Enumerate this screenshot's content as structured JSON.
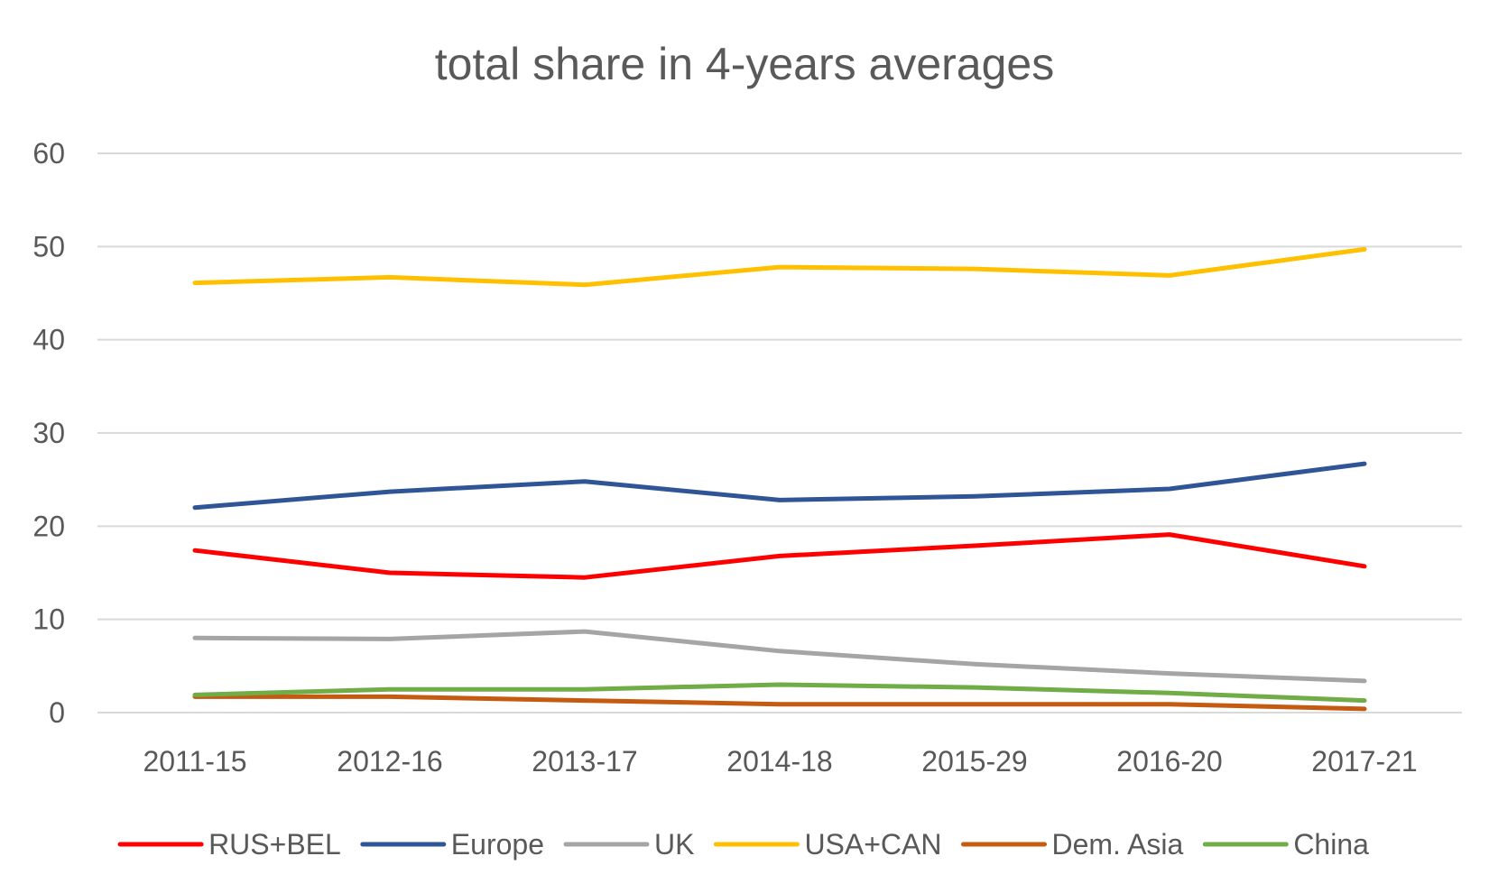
{
  "chart_data": {
    "type": "line",
    "title": "total share in 4-years averages",
    "xlabel": "",
    "ylabel": "",
    "categories": [
      "2011-15",
      "2012-16",
      "2013-17",
      "2014-18",
      "2015-29",
      "2016-20",
      "2017-21"
    ],
    "ylim": [
      0,
      60
    ],
    "yticks": [
      "0",
      "10",
      "20",
      "30",
      "40",
      "50",
      "60"
    ],
    "grid": true,
    "legend_position": "bottom",
    "series": [
      {
        "name": "RUS+BEL",
        "color": "#FF0000",
        "values": [
          17.4,
          15.0,
          14.5,
          16.8,
          17.9,
          19.1,
          15.7
        ]
      },
      {
        "name": "Europe",
        "color": "#2F5597",
        "values": [
          22.0,
          23.7,
          24.8,
          22.8,
          23.2,
          24.0,
          26.7
        ]
      },
      {
        "name": "UK",
        "color": "#A5A5A5",
        "values": [
          8.0,
          7.9,
          8.7,
          6.6,
          5.2,
          4.2,
          3.4
        ]
      },
      {
        "name": "USA+CAN",
        "color": "#FFC000",
        "values": [
          46.1,
          46.7,
          45.9,
          47.8,
          47.6,
          46.9,
          49.7
        ]
      },
      {
        "name": "Dem. Asia",
        "color": "#C55A11",
        "values": [
          1.7,
          1.7,
          1.3,
          0.9,
          0.9,
          0.9,
          0.4
        ]
      },
      {
        "name": "China",
        "color": "#70AD47",
        "values": [
          1.9,
          2.5,
          2.5,
          3.0,
          2.7,
          2.1,
          1.3
        ]
      }
    ]
  }
}
